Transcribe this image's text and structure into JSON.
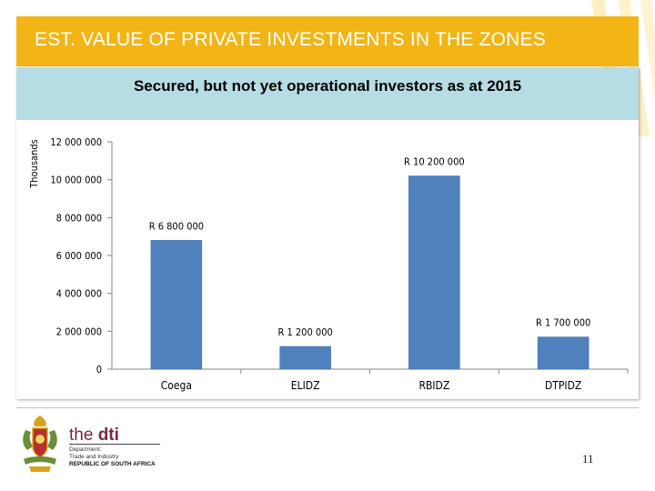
{
  "header": {
    "title": "EST. VALUE OF PRIVATE INVESTMENTS IN THE ZONES"
  },
  "colors": {
    "accent": "#f2b515",
    "subtitle_bg": "#b7dde4",
    "bar": "#4f81bd"
  },
  "chart_data": {
    "type": "bar",
    "title": "Secured, but not yet operational investors as at 2015",
    "xlabel": "",
    "ylabel": "Thousands",
    "categories": [
      "Coega",
      "ELIDZ",
      "RBIDZ",
      "DTPIDZ"
    ],
    "values": [
      6800000,
      1200000,
      10200000,
      1700000
    ],
    "data_labels": [
      "R 6 800 000",
      "R 1 200 000",
      "R 10 200 000",
      "R 1 700 000"
    ],
    "ylim": [
      0,
      12000000
    ],
    "yticks": [
      0,
      2000000,
      4000000,
      6000000,
      8000000,
      10000000,
      12000000
    ],
    "ytick_labels": [
      "0",
      "2 000 000",
      "4 000 000",
      "6 000 000",
      "8 000 000",
      "10 000 000",
      "12 000 000"
    ],
    "grid": false,
    "legend": "none"
  },
  "footer": {
    "brand_prefix": "the",
    "brand_name": "dti",
    "dept_line1": "Department:",
    "dept_line2": "Trade and Industry",
    "dept_line3": "REPUBLIC OF SOUTH AFRICA",
    "page_number": "11"
  }
}
